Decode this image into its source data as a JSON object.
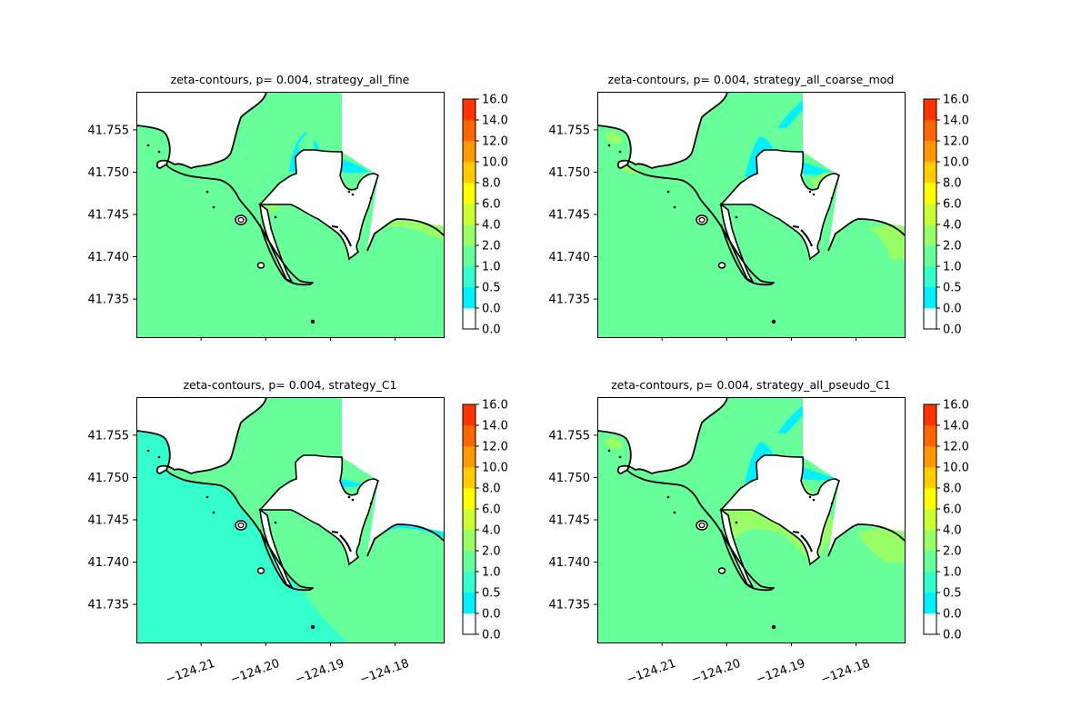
{
  "figure": {
    "panels": [
      {
        "title": "zeta-contours, p= 0.004, strategy_all_fine"
      },
      {
        "title": "zeta-contours, p= 0.004, strategy_all_coarse_mod"
      },
      {
        "title": "zeta-contours, p= 0.004, strategy_C1"
      },
      {
        "title": "zeta-contours, p= 0.004, strategy_all_pseudo_C1"
      }
    ],
    "colorbar_colors": [
      "#ffffff",
      "#00f0ff",
      "#33ffcc",
      "#66ff99",
      "#99ff66",
      "#ccff33",
      "#ffff00",
      "#ffcc00",
      "#ff9900",
      "#ff6600",
      "#ff3300",
      "#ff0000"
    ]
  },
  "chart_data": [
    {
      "type": "heatmap",
      "title": "zeta-contours, p= 0.004, strategy_all_fine",
      "xlabel": "",
      "ylabel": "",
      "xlim": [
        -124.22,
        -124.1725
      ],
      "ylim": [
        41.7305,
        41.7595
      ],
      "x_ticks": [
        -124.21,
        -124.2,
        -124.19,
        -124.18
      ],
      "x_tick_labels": [],
      "y_ticks": [
        41.735,
        41.74,
        41.745,
        41.75,
        41.755
      ],
      "y_tick_labels": [
        "41.735",
        "41.740",
        "41.745",
        "41.750",
        "41.755"
      ],
      "colorbar_levels": [
        "0.0",
        "0.0",
        "0.5",
        "1.0",
        "2.0",
        "4.0",
        "6.0",
        "8.0",
        "10.0",
        "12.0",
        "14.0",
        "16.0"
      ],
      "dominant_level_range": [
        1.0,
        2.0
      ],
      "secondary_level_range": [
        2.0,
        4.0
      ]
    },
    {
      "type": "heatmap",
      "title": "zeta-contours, p= 0.004, strategy_all_coarse_mod",
      "xlabel": "",
      "ylabel": "",
      "xlim": [
        -124.22,
        -124.1725
      ],
      "ylim": [
        41.7305,
        41.7595
      ],
      "x_ticks": [
        -124.21,
        -124.2,
        -124.19,
        -124.18
      ],
      "x_tick_labels": [],
      "y_ticks": [
        41.735,
        41.74,
        41.745,
        41.75,
        41.755
      ],
      "y_tick_labels": [
        "41.735",
        "41.740",
        "41.745",
        "41.750",
        "41.755"
      ],
      "colorbar_levels": [
        "0.0",
        "0.0",
        "0.5",
        "1.0",
        "2.0",
        "4.0",
        "6.0",
        "8.0",
        "10.0",
        "12.0",
        "14.0",
        "16.0"
      ],
      "dominant_level_range": [
        1.0,
        2.0
      ],
      "secondary_level_range": [
        2.0,
        4.0
      ]
    },
    {
      "type": "heatmap",
      "title": "zeta-contours, p= 0.004, strategy_C1",
      "xlabel": "",
      "ylabel": "",
      "xlim": [
        -124.22,
        -124.1725
      ],
      "ylim": [
        41.7305,
        41.7595
      ],
      "x_ticks": [
        -124.21,
        -124.2,
        -124.19,
        -124.18
      ],
      "x_tick_labels": [
        "−124.21",
        "−124.20",
        "−124.19",
        "−124.18"
      ],
      "y_ticks": [
        41.735,
        41.74,
        41.745,
        41.75,
        41.755
      ],
      "y_tick_labels": [
        "41.735",
        "41.740",
        "41.745",
        "41.750",
        "41.755"
      ],
      "colorbar_levels": [
        "0.0",
        "0.0",
        "0.5",
        "1.0",
        "2.0",
        "4.0",
        "6.0",
        "8.0",
        "10.0",
        "12.0",
        "14.0",
        "16.0"
      ],
      "dominant_level_range": [
        0.5,
        1.0
      ],
      "secondary_level_range": [
        1.0,
        2.0
      ]
    },
    {
      "type": "heatmap",
      "title": "zeta-contours, p= 0.004, strategy_all_pseudo_C1",
      "xlabel": "",
      "ylabel": "",
      "xlim": [
        -124.22,
        -124.1725
      ],
      "ylim": [
        41.7305,
        41.7595
      ],
      "x_ticks": [
        -124.21,
        -124.2,
        -124.19,
        -124.18
      ],
      "x_tick_labels": [
        "−124.21",
        "−124.20",
        "−124.19",
        "−124.18"
      ],
      "y_ticks": [
        41.735,
        41.74,
        41.745,
        41.75,
        41.755
      ],
      "y_tick_labels": [
        "41.735",
        "41.740",
        "41.745",
        "41.750",
        "41.755"
      ],
      "colorbar_levels": [
        "0.0",
        "0.0",
        "0.5",
        "1.0",
        "2.0",
        "4.0",
        "6.0",
        "8.0",
        "10.0",
        "12.0",
        "14.0",
        "16.0"
      ],
      "dominant_level_range": [
        1.0,
        2.0
      ],
      "secondary_level_range": [
        2.0,
        4.0
      ]
    }
  ]
}
